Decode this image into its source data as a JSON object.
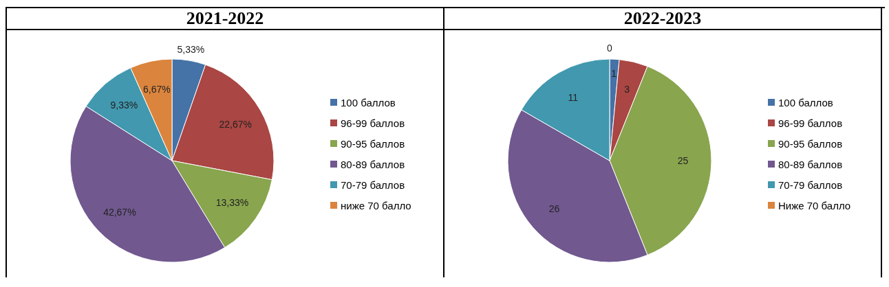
{
  "chart_data": [
    {
      "type": "pie",
      "title": "2021-2022",
      "categories": [
        "100 баллов",
        "96-99 баллов",
        "90-95 баллов",
        "80-89 баллов",
        "70-79 баллов",
        "ниже 70 балло"
      ],
      "values": [
        5.33,
        22.67,
        13.33,
        42.67,
        9.33,
        6.67
      ],
      "value_labels": [
        "5,33%",
        "22,67%",
        "13,33%",
        "42,67%",
        "9,33%",
        "6,67%"
      ],
      "colors": [
        "#4572a7",
        "#aa4643",
        "#89a54e",
        "#71588f",
        "#4198af",
        "#db843d"
      ],
      "legend": "right"
    },
    {
      "type": "pie",
      "title": "2022-2023",
      "categories": [
        "100 баллов",
        "96-99 баллов",
        "90-95 баллов",
        "80-89 баллов",
        "70-79 баллов",
        "Ниже 70 балло"
      ],
      "values": [
        1,
        3,
        25,
        26,
        11,
        0
      ],
      "value_labels": [
        "1",
        "3",
        "25",
        "26",
        "11",
        "0"
      ],
      "colors": [
        "#4572a7",
        "#aa4643",
        "#89a54e",
        "#71588f",
        "#4198af",
        "#db843d"
      ],
      "legend": "right"
    }
  ]
}
